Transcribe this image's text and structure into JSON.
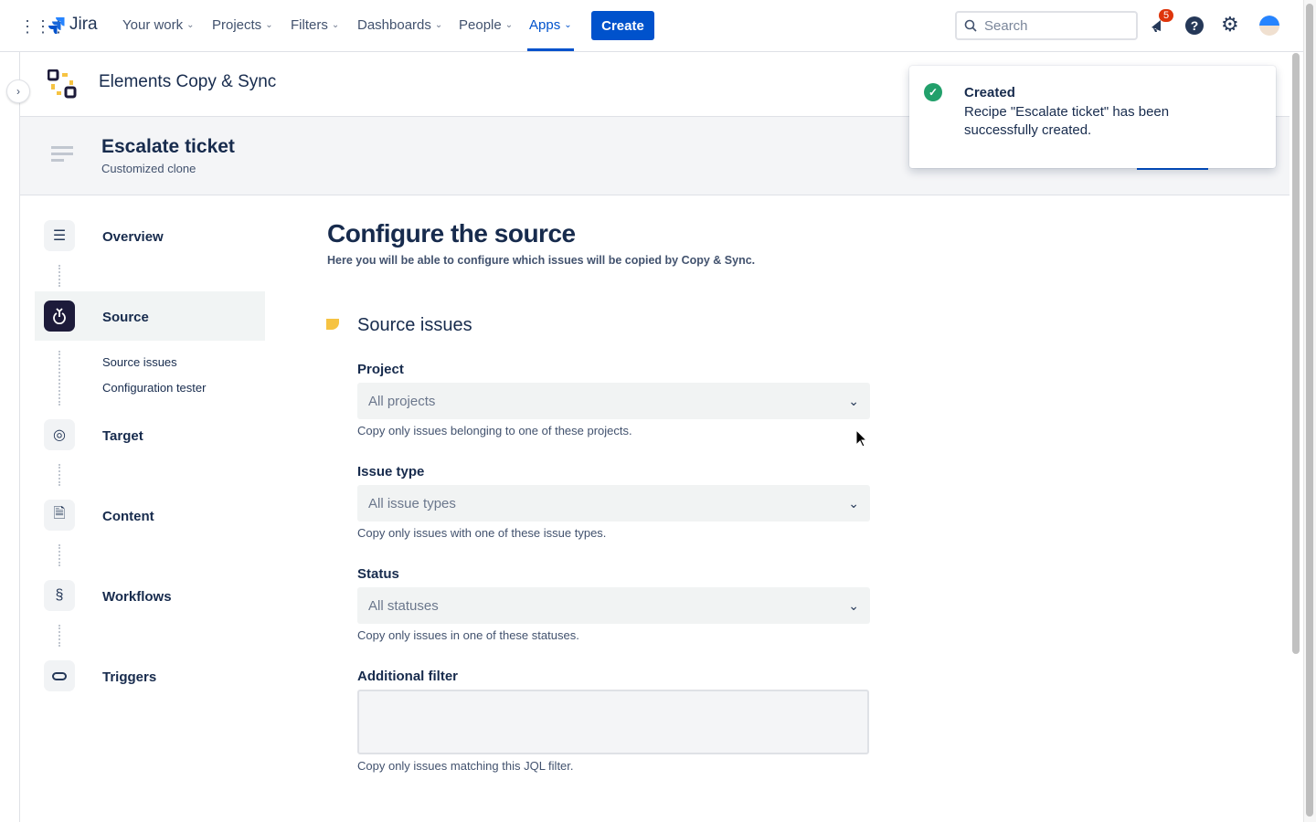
{
  "topnav": {
    "logo": "Jira",
    "items": [
      {
        "label": "Your work"
      },
      {
        "label": "Projects"
      },
      {
        "label": "Filters"
      },
      {
        "label": "Dashboards"
      },
      {
        "label": "People"
      },
      {
        "label": "Apps"
      }
    ],
    "create_label": "Create",
    "search_placeholder": "Search",
    "notification_count": "5",
    "accent": "#0052cc"
  },
  "app": {
    "title": "Elements Copy & Sync"
  },
  "recipe": {
    "title": "Escalate ticket",
    "subtitle": "Customized clone"
  },
  "sidebar": {
    "items": [
      {
        "label": "Overview",
        "icon": "list-icon"
      },
      {
        "label": "Source",
        "icon": "source-icon",
        "active": true,
        "children": [
          "Source issues",
          "Configuration tester"
        ]
      },
      {
        "label": "Target",
        "icon": "target-icon"
      },
      {
        "label": "Content",
        "icon": "document-icon"
      },
      {
        "label": "Workflows",
        "icon": "workflow-icon"
      },
      {
        "label": "Triggers",
        "icon": "toggle-icon"
      }
    ]
  },
  "main": {
    "title": "Configure the source",
    "subtitle": "Here you will be able to configure which issues will be copied by Copy & Sync.",
    "section_title": "Source issues",
    "fields": [
      {
        "label": "Project",
        "value": "All projects",
        "help": "Copy only issues belonging to one of these projects."
      },
      {
        "label": "Issue type",
        "value": "All issue types",
        "help": "Copy only issues with one of these issue types."
      },
      {
        "label": "Status",
        "value": "All statuses",
        "help": "Copy only issues in one of these statuses."
      },
      {
        "label": "Additional filter",
        "value": "",
        "help": "Copy only issues matching this JQL filter."
      }
    ]
  },
  "toast": {
    "title": "Created",
    "message": "Recipe \"Escalate ticket\" has been successfully created.",
    "color": "#22a06b"
  }
}
